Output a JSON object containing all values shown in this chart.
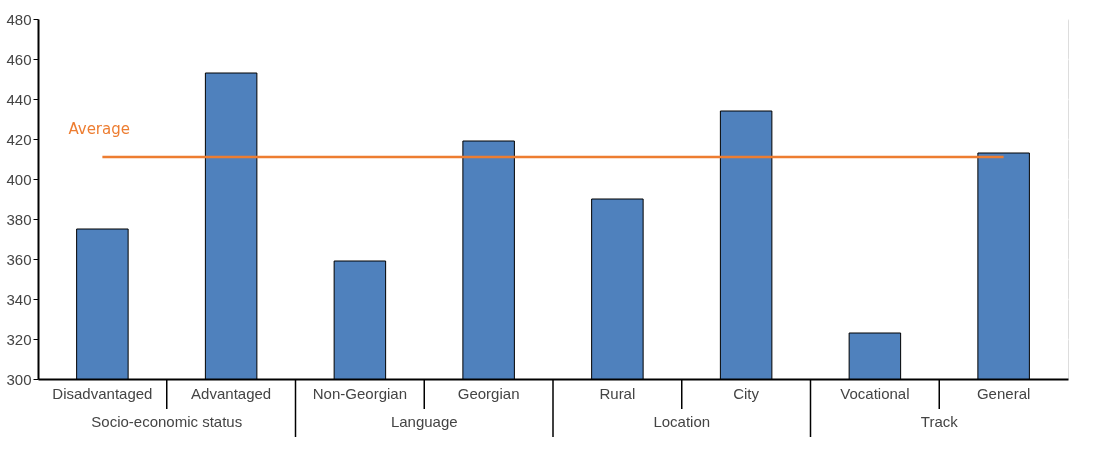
{
  "chart_data": {
    "type": "bar",
    "categories": [
      "Disadvantaged",
      "Advantaged",
      "Non-Georgian",
      "Georgian",
      "Rural",
      "City",
      "Vocational",
      "General"
    ],
    "values": [
      375,
      453,
      359,
      419,
      390,
      434,
      323,
      413
    ],
    "color": "#4f81bd",
    "ylim": [
      300,
      480
    ],
    "yticks": [
      300,
      320,
      340,
      360,
      380,
      400,
      420,
      440,
      460,
      480
    ],
    "grid": "y",
    "ref_lines": [
      {
        "axis": "y",
        "value": 411,
        "label": "Average",
        "color": "#ed7d31"
      }
    ],
    "annotations": [
      "Socio-economic status",
      "Language",
      "Location",
      "Track"
    ]
  }
}
